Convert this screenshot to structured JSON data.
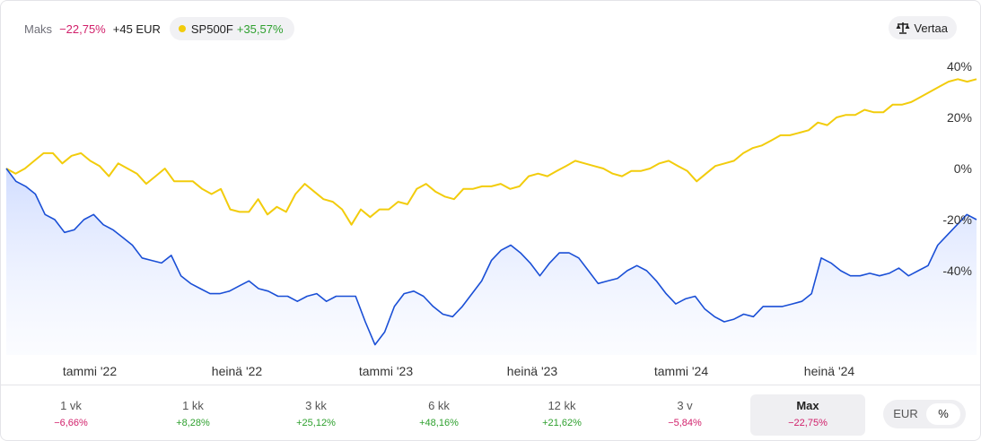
{
  "header": {
    "maks_label": "Maks",
    "maks_pct": "−22,75%",
    "maks_eur": "+45 EUR",
    "benchmark_name": "SP500F",
    "benchmark_pct": "+35,57%",
    "compare_label": "Vertaa"
  },
  "colors": {
    "portfolio": "#1a4fd6",
    "benchmark": "#f2cc0c",
    "negative": "#d11f6a",
    "positive": "#2ea02e"
  },
  "chart_data": {
    "type": "line",
    "x_ticks": [
      "tammi '22",
      "heinä '22",
      "tammi '23",
      "heinä '23",
      "tammi '24",
      "heinä '24"
    ],
    "y_ticks": [
      "40%",
      "20%",
      "0%",
      "-20%",
      "-40%"
    ],
    "y_tick_values": [
      40,
      20,
      0,
      -20,
      -40
    ],
    "ylim": [
      -70,
      42
    ],
    "x_range": [
      "2021-10",
      "2025-01"
    ],
    "grid": false,
    "series": [
      {
        "name": "SP500F",
        "values": [
          0,
          -2,
          0,
          3,
          6,
          6,
          2,
          5,
          6,
          3,
          1,
          -3,
          2,
          0,
          -2,
          -6,
          -3,
          0,
          -5,
          -5,
          -5,
          -8,
          -10,
          -8,
          -16,
          -17,
          -17,
          -12,
          -18,
          -15,
          -17,
          -10,
          -6,
          -9,
          -12,
          -13,
          -16,
          -22,
          -16,
          -19,
          -16,
          -16,
          -13,
          -14,
          -8,
          -6,
          -9,
          -11,
          -12,
          -8,
          -8,
          -7,
          -7,
          -6,
          -8,
          -7,
          -3,
          -2,
          -3,
          -1,
          1,
          3,
          2,
          1,
          0,
          -2,
          -3,
          -1,
          -1,
          0,
          2,
          3,
          1,
          -1,
          -5,
          -2,
          1,
          2,
          3,
          6,
          8,
          9,
          11,
          13,
          13,
          14,
          15,
          18,
          17,
          20,
          21,
          21,
          23,
          22,
          22,
          25,
          25,
          26,
          28,
          30,
          32,
          34,
          35,
          34,
          35
        ]
      },
      {
        "name": "",
        "values": [
          0,
          -5,
          -7,
          -10,
          -18,
          -20,
          -25,
          -24,
          -20,
          -18,
          -22,
          -24,
          -27,
          -30,
          -35,
          -36,
          -37,
          -34,
          -42,
          -45,
          -47,
          -49,
          -49,
          -48,
          -46,
          -44,
          -47,
          -48,
          -50,
          -50,
          -52,
          -50,
          -49,
          -52,
          -50,
          -50,
          -50,
          -60,
          -69,
          -64,
          -54,
          -49,
          -48,
          -50,
          -54,
          -57,
          -58,
          -54,
          -49,
          -44,
          -36,
          -32,
          -30,
          -33,
          -37,
          -42,
          -37,
          -33,
          -33,
          -35,
          -40,
          -45,
          -44,
          -43,
          -40,
          -38,
          -40,
          -44,
          -49,
          -53,
          -51,
          -50,
          -55,
          -58,
          -60,
          -59,
          -57,
          -58,
          -54,
          -54,
          -54,
          -53,
          -52,
          -49,
          -35,
          -37,
          -40,
          -42,
          -42,
          -41,
          -42,
          -41,
          -39,
          -42,
          -40,
          -38,
          -30,
          -26,
          -22,
          -18,
          -20
        ]
      }
    ]
  },
  "periods": [
    {
      "label": "1 vk",
      "value": "−6,66%",
      "sign": "neg"
    },
    {
      "label": "1 kk",
      "value": "+8,28%",
      "sign": "pos"
    },
    {
      "label": "3 kk",
      "value": "+25,12%",
      "sign": "pos"
    },
    {
      "label": "6 kk",
      "value": "+48,16%",
      "sign": "pos"
    },
    {
      "label": "12 kk",
      "value": "+21,62%",
      "sign": "pos"
    },
    {
      "label": "3 v",
      "value": "−5,84%",
      "sign": "neg"
    },
    {
      "label": "Max",
      "value": "−22,75%",
      "sign": "neg",
      "active": true
    }
  ],
  "currency_toggle": {
    "eur_label": "EUR",
    "pct_label": "%"
  }
}
